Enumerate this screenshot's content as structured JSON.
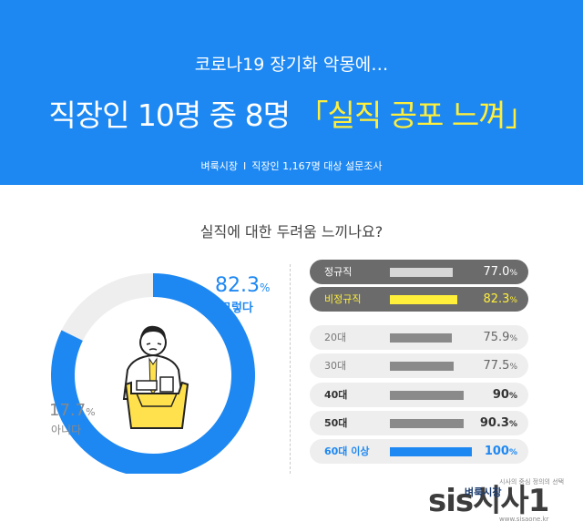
{
  "header": {
    "subtitle": "코로나19 장기화 악몽에…",
    "title_main": "직장인 10명 중 8명",
    "title_highlight": "「실직 공포 느껴」",
    "source_org": "벼룩시장",
    "source_sep": "I",
    "source_desc": "직장인 1,167명 대상 설문조사"
  },
  "colors": {
    "header_bg": "#1e88f2",
    "accent_blue": "#1e88f2",
    "accent_yellow": "#ffef3b",
    "gray_bar": "#8a8a8a"
  },
  "chart_data": [
    {
      "type": "pie",
      "title": "실직에 대한 두려움 느끼나요?",
      "slices": [
        {
          "label": "그렇다",
          "value": 82.3,
          "unit": "%",
          "color": "#1e88f2"
        },
        {
          "label": "아니다",
          "value": 17.7,
          "unit": "%",
          "color": "#eeeeee"
        }
      ],
      "illustration": "worried-office-worker-with-box"
    },
    {
      "type": "bar",
      "orientation": "horizontal",
      "unit": "%",
      "categories": [
        "정규직",
        "비정규직",
        "20대",
        "30대",
        "40대",
        "50대",
        "60대 이상"
      ],
      "values": [
        77.0,
        82.3,
        75.9,
        77.5,
        90,
        90.3,
        100
      ],
      "value_labels": [
        "77.0",
        "82.3",
        "75.9",
        "77.5",
        "90",
        "90.3",
        "100"
      ],
      "xlim": [
        0,
        100
      ]
    }
  ],
  "watermark": {
    "logo": "sis시사1",
    "small_text": "시사의 중심 정의의 선택",
    "url": "www.sisaone.kr",
    "brand": "벼룩시장"
  }
}
